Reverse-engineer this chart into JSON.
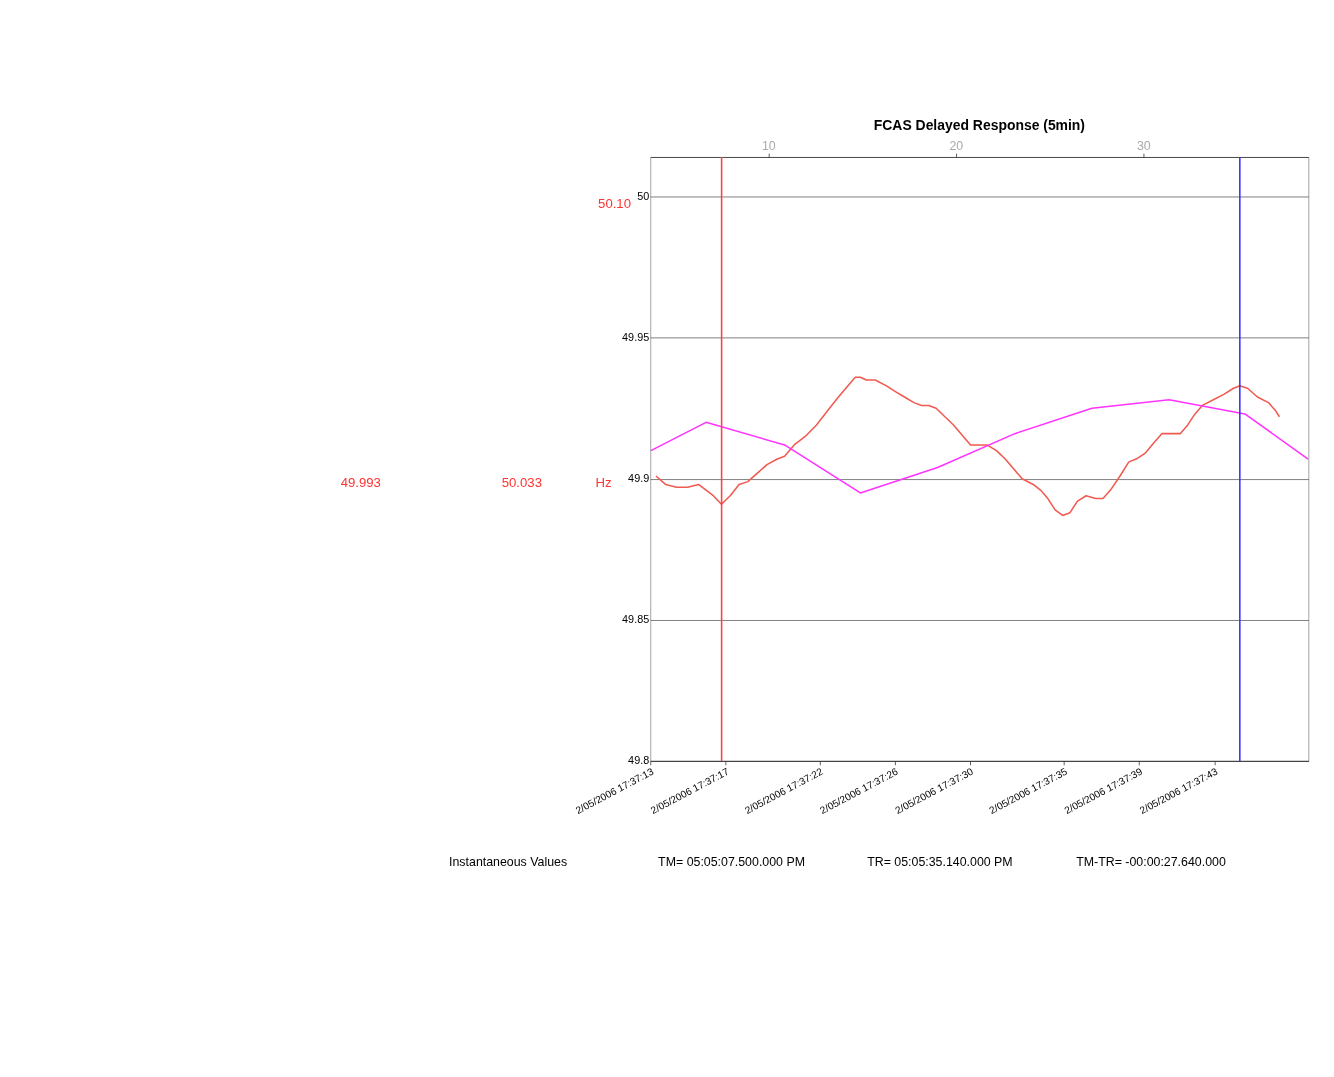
{
  "chart_data": {
    "type": "line",
    "title": "FCAS Delayed Response (5min)",
    "xlim": [
      3.7,
      38.8
    ],
    "xticks": [
      10,
      20,
      30
    ],
    "x2lim": [
      "2006-05-02T17:37:13",
      "2006-05-02T17:37:48"
    ],
    "x2ticks": [
      {
        "value": "2006-05-02T17:37:13",
        "label": "2/05/2006 17:37:13"
      },
      {
        "value": "2006-05-02T17:37:17",
        "label": "2/05/2006 17:37:17"
      },
      {
        "value": "2006-05-02T17:37:22",
        "label": "2/05/2006 17:37:22"
      },
      {
        "value": "2006-05-02T17:37:26",
        "label": "2/05/2006 17:37:26"
      },
      {
        "value": "2006-05-02T17:37:30",
        "label": "2/05/2006 17:37:30"
      },
      {
        "value": "2006-05-02T17:37:35",
        "label": "2/05/2006 17:37:35"
      },
      {
        "value": "2006-05-02T17:37:39",
        "label": "2/05/2006 17:37:39"
      },
      {
        "value": "2006-05-02T17:37:43",
        "label": "2/05/2006 17:37:43"
      }
    ],
    "ylim": [
      49.8,
      50.014
    ],
    "yticks": [
      49.8,
      49.85,
      49.9,
      49.95,
      50
    ],
    "grid": "y",
    "marker": "none",
    "line_style": "solid",
    "series": [
      {
        "color": "#f05a50",
        "x": [
          4.0,
          4.51,
          5.1,
          5.69,
          6.27,
          6.67,
          7.06,
          7.49,
          7.96,
          8.43,
          8.9,
          9.41,
          9.92,
          10.47,
          10.86,
          11.37,
          11.96,
          12.55,
          13.14,
          13.73,
          14.24,
          14.63,
          14.9,
          15.22,
          15.69,
          16.27,
          16.75,
          17.25,
          17.76,
          18.16,
          18.55,
          18.94,
          19.41,
          19.88,
          20.39,
          20.78,
          21.18,
          21.65,
          22.16,
          22.63,
          23.14,
          23.53,
          24.12,
          24.51,
          24.9,
          25.29,
          25.69,
          26.08,
          26.47,
          26.94,
          27.45,
          27.84,
          28.24,
          28.75,
          29.22,
          29.61,
          30.08,
          30.59,
          30.98,
          31.49,
          31.96,
          32.35,
          32.75,
          33.14,
          33.73,
          34.31,
          34.78,
          35.14,
          35.57,
          36.08,
          36.67,
          37.06,
          37.25
        ],
        "values": [
          49.901,
          49.898,
          49.897,
          49.897,
          49.898,
          49.896,
          49.894,
          49.891,
          49.894,
          49.898,
          49.899,
          49.902,
          49.905,
          49.907,
          49.908,
          49.912,
          49.915,
          49.919,
          49.924,
          49.929,
          49.933,
          49.936,
          49.936,
          49.935,
          49.935,
          49.933,
          49.931,
          49.929,
          49.927,
          49.926,
          49.926,
          49.925,
          49.922,
          49.919,
          49.915,
          49.912,
          49.912,
          49.912,
          49.91,
          49.907,
          49.903,
          49.9,
          49.898,
          49.896,
          49.893,
          49.889,
          49.887,
          49.888,
          49.892,
          49.894,
          49.893,
          49.893,
          49.896,
          49.901,
          49.906,
          49.907,
          49.909,
          49.913,
          49.916,
          49.916,
          49.916,
          49.919,
          49.923,
          49.926,
          49.928,
          49.93,
          49.932,
          49.933,
          49.932,
          49.929,
          49.927,
          49.924,
          49.922
        ]
      },
      {
        "color": "#ff33ff",
        "x": [
          3.73,
          6.67,
          10.86,
          14.9,
          19.02,
          23.14,
          27.25,
          31.37,
          35.41,
          38.78
        ],
        "values": [
          49.91,
          49.92,
          49.912,
          49.895,
          49.904,
          49.916,
          49.925,
          49.928,
          49.923,
          49.907
        ]
      }
    ],
    "ref_lines": [
      {
        "axis": "x",
        "value": 7.5,
        "color": "#ff4040"
      },
      {
        "axis": "x",
        "value": 35.14,
        "color": "#3333ff"
      }
    ],
    "annotations": [
      "50.10",
      "49.993",
      "50.033",
      "Hz",
      "Instantaneous Values",
      "TM= 05:05:07.500.000 PM",
      "TR= 05:05:35.140.000 PM",
      "TM-TR= -00:00:27.640.000"
    ]
  }
}
